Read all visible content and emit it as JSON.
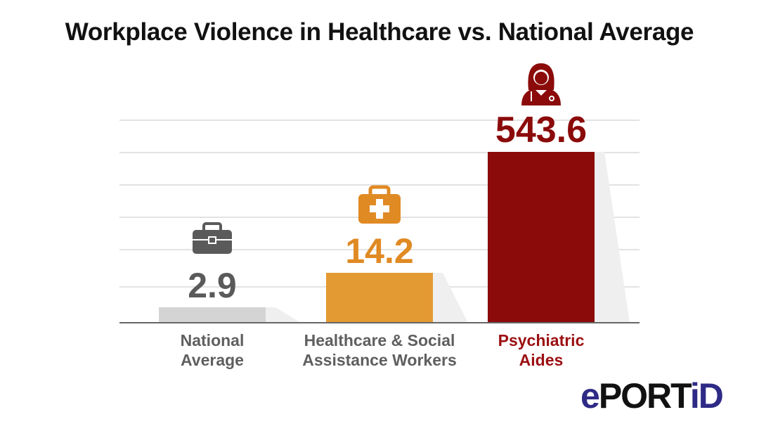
{
  "chart_data": {
    "type": "bar",
    "title": "Workplace Violence in Healthcare vs. National Average",
    "categories": [
      "National Average",
      "Healthcare & Social Assistance Workers",
      "Psychiatric Aides"
    ],
    "category_lines": [
      [
        "National",
        "Average"
      ],
      [
        "Healthcare & Social",
        "Assistance Workers"
      ],
      [
        "Psychiatric",
        "Aides"
      ]
    ],
    "values": [
      2.9,
      14.2,
      543.6
    ],
    "data_labels": [
      "2.9",
      "14.2",
      "543.6"
    ],
    "colors": [
      "#d4d4d4",
      "#e49a32",
      "#8b0a0a"
    ],
    "label_colors": [
      "#5a5a5a",
      "#e08a24",
      "#8b0a0a"
    ],
    "category_label_colors": [
      "#5f5f5f",
      "#5f5f5f",
      "#9b0f12"
    ],
    "icons": [
      "briefcase-icon",
      "first-aid-kit-icon",
      "healthcare-worker-icon"
    ],
    "xlabel": "",
    "ylabel": "",
    "grid": true,
    "axis_scale": "not to scale"
  },
  "logo": {
    "text_e": "e",
    "text_port": "PORT",
    "text_id": "iD",
    "colors": {
      "brand_blue": "#2e2a86",
      "black": "#111111"
    }
  }
}
